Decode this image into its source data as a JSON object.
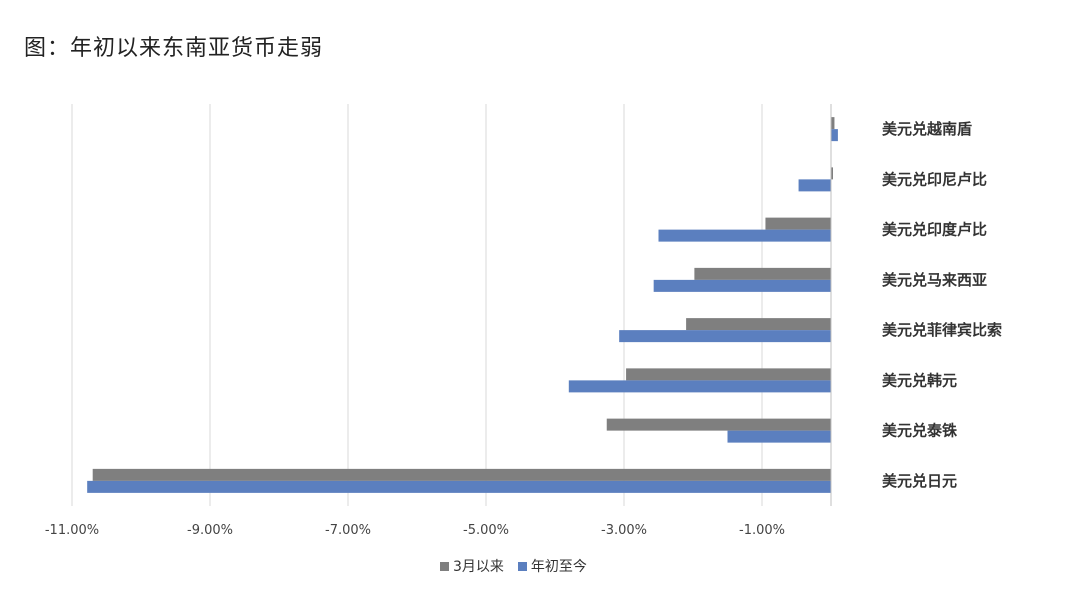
{
  "title": "图：年初以来东南亚货币走弱",
  "chart_data": {
    "type": "bar",
    "orientation": "horizontal",
    "categories": [
      "美元兑越南盾",
      "美元兑印尼卢比",
      "美元兑印度卢比",
      "美元兑马来西亚",
      "美元兑菲律宾比索",
      "美元兑韩元",
      "美元兑泰铢",
      "美元兑日元"
    ],
    "series": [
      {
        "name": "3月以来",
        "color": "#7f7f7f",
        "values": [
          0.05,
          0.02,
          -0.95,
          -1.98,
          -2.1,
          -2.97,
          -3.25,
          -10.7
        ]
      },
      {
        "name": "年初至今",
        "color": "#5b7fbf",
        "values": [
          0.1,
          -0.47,
          -2.5,
          -2.57,
          -3.07,
          -3.8,
          -1.5,
          -10.78
        ]
      }
    ],
    "xlim": [
      -11.0,
      0.0
    ],
    "xticks": [
      -11.0,
      -9.0,
      -7.0,
      -5.0,
      -3.0,
      -1.0
    ],
    "xtick_labels": [
      "-11.00%",
      "-9.00%",
      "-7.00%",
      "-5.00%",
      "-3.00%",
      "-1.00%"
    ],
    "grid": true,
    "legend_position": "bottom"
  }
}
